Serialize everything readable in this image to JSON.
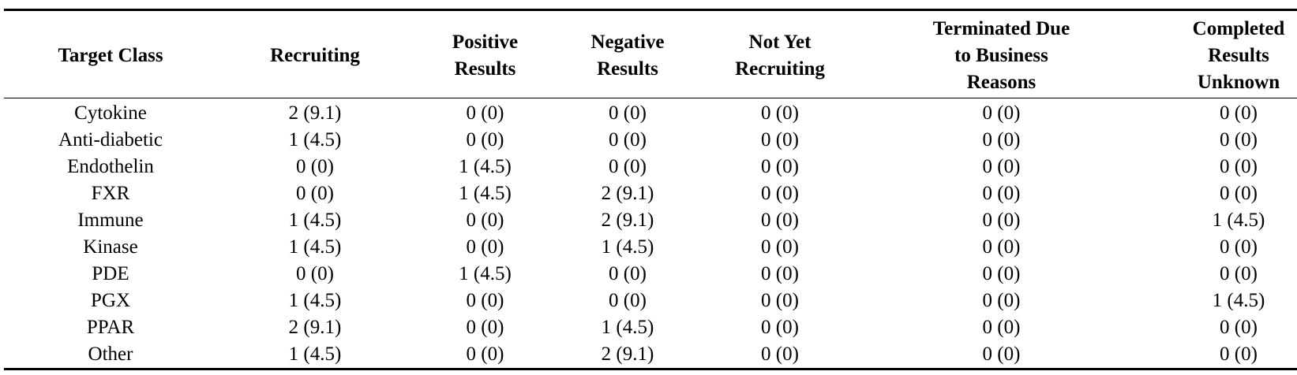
{
  "table": {
    "headers": [
      "Target Class",
      "Recruiting",
      "Positive Results",
      "Negative Results",
      "Not Yet Recruiting",
      "Terminated Due to Business Reasons",
      "Completed Results Unknown"
    ],
    "header_lines": [
      [
        "Target Class"
      ],
      [
        "Recruiting"
      ],
      [
        "Positive",
        "Results"
      ],
      [
        "Negative",
        "Results"
      ],
      [
        "Not Yet",
        "Recruiting"
      ],
      [
        "Terminated Due",
        "to Business",
        "Reasons"
      ],
      [
        "Completed",
        "Results",
        "Unknown"
      ]
    ],
    "rows": [
      [
        "Cytokine",
        "2 (9.1)",
        "0 (0)",
        "0 (0)",
        "0 (0)",
        "0 (0)",
        "0 (0)"
      ],
      [
        "Anti-diabetic",
        "1 (4.5)",
        "0 (0)",
        "0 (0)",
        "0 (0)",
        "0 (0)",
        "0 (0)"
      ],
      [
        "Endothelin",
        "0 (0)",
        "1 (4.5)",
        "0 (0)",
        "0 (0)",
        "0 (0)",
        "0 (0)"
      ],
      [
        "FXR",
        "0 (0)",
        "1 (4.5)",
        "2 (9.1)",
        "0 (0)",
        "0 (0)",
        "0 (0)"
      ],
      [
        "Immune",
        "1 (4.5)",
        "0 (0)",
        "2 (9.1)",
        "0 (0)",
        "0 (0)",
        "1 (4.5)"
      ],
      [
        "Kinase",
        "1 (4.5)",
        "0 (0)",
        "1 (4.5)",
        "0 (0)",
        "0 (0)",
        "0 (0)"
      ],
      [
        "PDE",
        "0 (0)",
        "1 (4.5)",
        "0 (0)",
        "0 (0)",
        "0 (0)",
        "0 (0)"
      ],
      [
        "PGX",
        "1 (4.5)",
        "0 (0)",
        "0 (0)",
        "0 (0)",
        "0 (0)",
        "1 (4.5)"
      ],
      [
        "PPAR",
        "2 (9.1)",
        "0 (0)",
        "1 (4.5)",
        "0 (0)",
        "0 (0)",
        "0 (0)"
      ],
      [
        "Other",
        "1 (4.5)",
        "0 (0)",
        "2 (9.1)",
        "0 (0)",
        "0 (0)",
        "0 (0)"
      ]
    ]
  }
}
